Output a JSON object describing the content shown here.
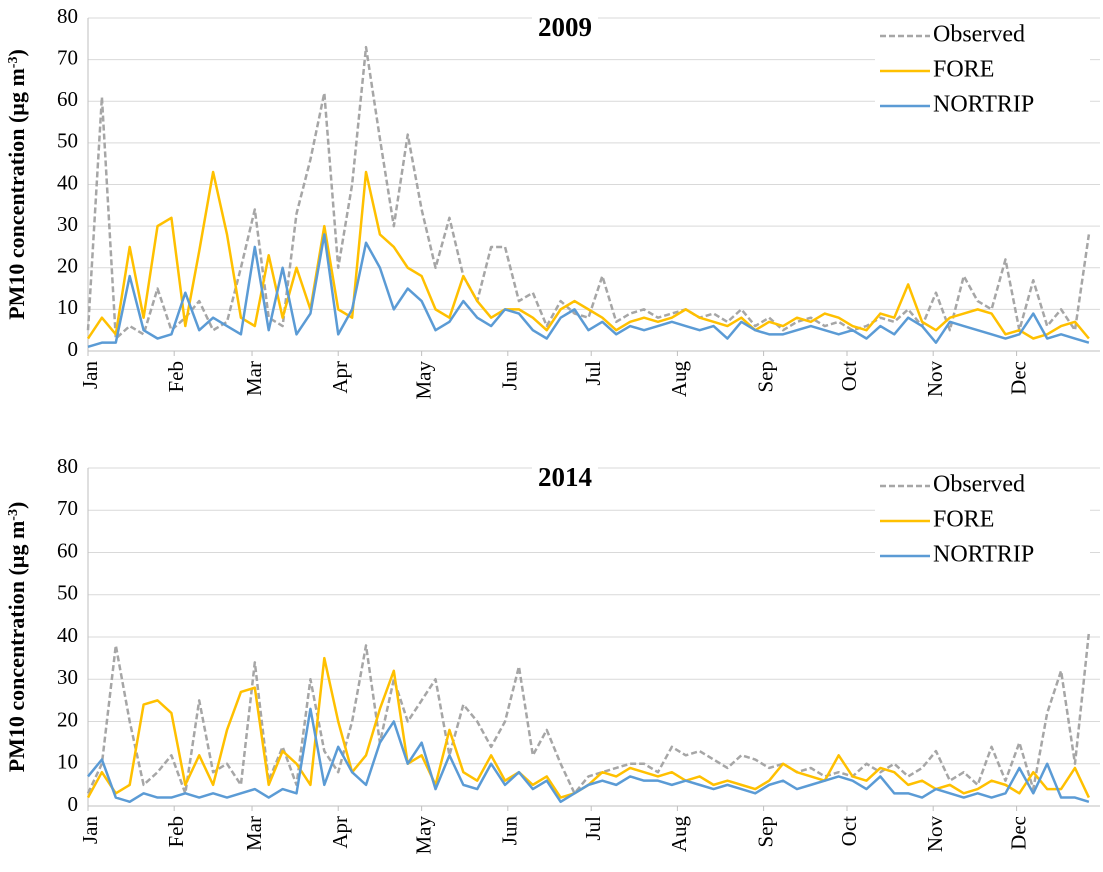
{
  "chart_data": [
    {
      "type": "line",
      "title": "2009",
      "ylabel": "PM10 concentration (µg m",
      "ylabel_sup": "-3",
      "ylabel_end": ")",
      "xlim": [
        1,
        365
      ],
      "xticks": [
        {
          "value": 1,
          "label": "Jan"
        },
        {
          "value": 32,
          "label": "Feb"
        },
        {
          "value": 60,
          "label": "Mar"
        },
        {
          "value": 91,
          "label": "Apr"
        },
        {
          "value": 121,
          "label": "May"
        },
        {
          "value": 152,
          "label": "Jun"
        },
        {
          "value": 182,
          "label": "Jul"
        },
        {
          "value": 213,
          "label": "Aug"
        },
        {
          "value": 244,
          "label": "Sep"
        },
        {
          "value": 274,
          "label": "Oct"
        },
        {
          "value": 305,
          "label": "Nov"
        },
        {
          "value": 335,
          "label": "Dec"
        }
      ],
      "ylim": [
        0,
        80
      ],
      "yticks": [
        0,
        10,
        20,
        30,
        40,
        50,
        60,
        70,
        80
      ],
      "grid": true,
      "legend": "upper right",
      "x": [
        1,
        6,
        11,
        16,
        21,
        26,
        31,
        36,
        41,
        46,
        51,
        56,
        61,
        66,
        71,
        76,
        81,
        86,
        91,
        96,
        101,
        106,
        111,
        116,
        121,
        126,
        131,
        136,
        141,
        146,
        151,
        156,
        161,
        166,
        171,
        176,
        181,
        186,
        191,
        196,
        201,
        206,
        211,
        216,
        221,
        226,
        231,
        236,
        241,
        246,
        251,
        256,
        261,
        266,
        271,
        276,
        281,
        286,
        291,
        296,
        301,
        306,
        311,
        316,
        321,
        326,
        331,
        336,
        341,
        346,
        351,
        356,
        361
      ],
      "series": [
        {
          "name": "Observed",
          "color": "#a6a6a6",
          "dashed": true,
          "values": [
            5,
            61,
            3,
            6,
            4,
            15,
            5,
            8,
            12,
            5,
            7,
            20,
            34,
            8,
            6,
            33,
            46,
            62,
            20,
            40,
            73,
            51,
            30,
            52,
            34,
            20,
            32,
            18,
            12,
            25,
            25,
            12,
            14,
            6,
            12,
            9,
            8,
            18,
            7,
            9,
            10,
            8,
            9,
            10,
            8,
            9,
            7,
            10,
            6,
            8,
            5,
            7,
            8,
            6,
            7,
            5,
            6,
            8,
            7,
            10,
            6,
            14,
            5,
            18,
            12,
            10,
            22,
            5,
            17,
            6,
            10,
            5,
            28
          ]
        },
        {
          "name": "FORE",
          "color": "#ffc000",
          "dashed": false,
          "values": [
            3,
            8,
            4,
            25,
            8,
            30,
            32,
            6,
            24,
            43,
            28,
            8,
            6,
            23,
            8,
            20,
            10,
            30,
            10,
            8,
            43,
            28,
            25,
            20,
            18,
            10,
            8,
            18,
            12,
            8,
            10,
            10,
            8,
            5,
            10,
            12,
            10,
            8,
            5,
            7,
            8,
            7,
            8,
            10,
            8,
            7,
            6,
            8,
            5,
            7,
            6,
            8,
            7,
            9,
            8,
            6,
            5,
            9,
            8,
            16,
            7,
            5,
            8,
            9,
            10,
            9,
            4,
            5,
            3,
            4,
            6,
            7,
            3
          ]
        },
        {
          "name": "NORTRIP",
          "color": "#5b9bd5",
          "dashed": false,
          "values": [
            1,
            2,
            2,
            18,
            5,
            3,
            4,
            14,
            5,
            8,
            6,
            4,
            25,
            5,
            20,
            4,
            9,
            28,
            4,
            10,
            26,
            20,
            10,
            15,
            12,
            5,
            7,
            12,
            8,
            6,
            10,
            9,
            5,
            3,
            8,
            10,
            5,
            7,
            4,
            6,
            5,
            6,
            7,
            6,
            5,
            6,
            3,
            7,
            5,
            4,
            4,
            5,
            6,
            5,
            4,
            5,
            3,
            6,
            4,
            8,
            6,
            2,
            7,
            6,
            5,
            4,
            3,
            4,
            9,
            3,
            4,
            3,
            2
          ]
        }
      ]
    },
    {
      "type": "line",
      "title": "2014",
      "ylabel": "PM10 concentration (µg m",
      "ylabel_sup": "-3",
      "ylabel_end": ")",
      "xlim": [
        1,
        365
      ],
      "xticks": [
        {
          "value": 1,
          "label": "Jan"
        },
        {
          "value": 32,
          "label": "Feb"
        },
        {
          "value": 60,
          "label": "Mar"
        },
        {
          "value": 91,
          "label": "Apr"
        },
        {
          "value": 121,
          "label": "May"
        },
        {
          "value": 152,
          "label": "Jun"
        },
        {
          "value": 182,
          "label": "Jul"
        },
        {
          "value": 213,
          "label": "Aug"
        },
        {
          "value": 244,
          "label": "Sep"
        },
        {
          "value": 274,
          "label": "Oct"
        },
        {
          "value": 305,
          "label": "Nov"
        },
        {
          "value": 335,
          "label": "Dec"
        }
      ],
      "ylim": [
        0,
        80
      ],
      "yticks": [
        0,
        10,
        20,
        30,
        40,
        50,
        60,
        70,
        80
      ],
      "grid": true,
      "legend": "upper right",
      "x": [
        1,
        6,
        11,
        16,
        21,
        26,
        31,
        36,
        41,
        46,
        51,
        56,
        61,
        66,
        71,
        76,
        81,
        86,
        91,
        96,
        101,
        106,
        111,
        116,
        121,
        126,
        131,
        136,
        141,
        146,
        151,
        156,
        161,
        166,
        171,
        176,
        181,
        186,
        191,
        196,
        201,
        206,
        211,
        216,
        221,
        226,
        231,
        236,
        241,
        246,
        251,
        256,
        261,
        266,
        271,
        276,
        281,
        286,
        291,
        296,
        301,
        306,
        311,
        316,
        321,
        326,
        331,
        336,
        341,
        346,
        351,
        356,
        361
      ],
      "series": [
        {
          "name": "Observed",
          "color": "#a6a6a6",
          "dashed": true,
          "values": [
            3,
            10,
            38,
            20,
            5,
            8,
            12,
            3,
            25,
            8,
            10,
            5,
            34,
            6,
            14,
            5,
            30,
            13,
            8,
            20,
            38,
            15,
            30,
            20,
            25,
            30,
            12,
            24,
            20,
            14,
            20,
            33,
            12,
            18,
            10,
            3,
            7,
            8,
            9,
            10,
            10,
            8,
            14,
            12,
            13,
            11,
            9,
            12,
            11,
            9,
            10,
            8,
            9,
            7,
            8,
            7,
            10,
            8,
            10,
            7,
            9,
            13,
            6,
            8,
            5,
            14,
            6,
            15,
            4,
            22,
            32,
            10,
            41
          ]
        },
        {
          "name": "FORE",
          "color": "#ffc000",
          "dashed": false,
          "values": [
            2,
            8,
            3,
            5,
            24,
            25,
            22,
            5,
            12,
            5,
            18,
            27,
            28,
            5,
            13,
            10,
            5,
            35,
            20,
            8,
            12,
            23,
            32,
            10,
            12,
            5,
            18,
            8,
            6,
            12,
            6,
            8,
            5,
            7,
            2,
            3,
            5,
            8,
            7,
            9,
            8,
            7,
            8,
            6,
            7,
            5,
            6,
            5,
            4,
            6,
            10,
            8,
            7,
            6,
            12,
            7,
            6,
            9,
            8,
            5,
            6,
            4,
            5,
            3,
            4,
            6,
            5,
            3,
            8,
            4,
            4,
            9,
            2
          ]
        },
        {
          "name": "NORTRIP",
          "color": "#5b9bd5",
          "dashed": false,
          "values": [
            7,
            11,
            2,
            1,
            3,
            2,
            2,
            3,
            2,
            3,
            2,
            3,
            4,
            2,
            4,
            3,
            23,
            5,
            14,
            8,
            5,
            15,
            20,
            10,
            15,
            4,
            12,
            5,
            4,
            10,
            5,
            8,
            4,
            6,
            1,
            3,
            5,
            6,
            5,
            7,
            6,
            6,
            5,
            6,
            5,
            4,
            5,
            4,
            3,
            5,
            6,
            4,
            5,
            6,
            7,
            6,
            4,
            7,
            3,
            3,
            2,
            4,
            3,
            2,
            3,
            2,
            3,
            9,
            3,
            10,
            2,
            2,
            1
          ]
        }
      ]
    }
  ]
}
